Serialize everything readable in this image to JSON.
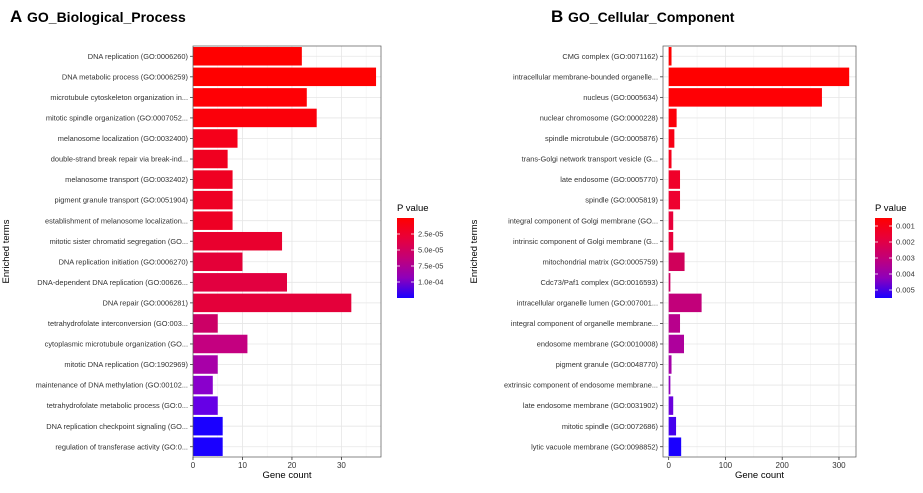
{
  "panels": [
    {
      "letter": "A",
      "title": "GO_Biological_Process",
      "chart_data": {
        "type": "bar",
        "orientation": "horizontal",
        "ylabel": "Enriched terms",
        "xlabel": "Gene count",
        "xlim": [
          0,
          38
        ],
        "xticks": [
          0,
          10,
          20,
          30
        ],
        "grid": true,
        "categories": [
          "DNA replication (GO:0006260)",
          "DNA metabolic process (GO:0006259)",
          "microtubule cytoskeleton organization in...",
          "mitotic spindle organization (GO:0007052...",
          "melanosome localization (GO:0032400)",
          "double-strand break repair via break-ind...",
          "melanosome transport (GO:0032402)",
          "pigment granule transport (GO:0051904)",
          "establishment of melanosome localization...",
          "mitotic sister chromatid segregation (GO...",
          "DNA replication initiation (GO:0006270)",
          "DNA-dependent DNA replication (GO:00626...",
          "DNA repair (GO:0006281)",
          "tetrahydrofolate interconversion (GO:003...",
          "cytoplasmic microtubule organization (GO...",
          "mitotic DNA replication (GO:1902969)",
          "maintenance of DNA methylation (GO:00102...",
          "tetrahydrofolate metabolic process (GO:0...",
          "DNA replication checkpoint signaling (GO...",
          "regulation of transferase activity (GO:0..."
        ],
        "values": [
          22,
          37,
          23,
          25,
          9,
          7,
          8,
          8,
          8,
          18,
          10,
          19,
          32,
          5,
          11,
          5,
          4,
          5,
          6,
          6
        ],
        "colors": [
          "#ff0000",
          "#ff0000",
          "#ff0005",
          "#fb000a",
          "#f5001a",
          "#f00020",
          "#ef0022",
          "#ee0024",
          "#ee0024",
          "#e9002e",
          "#e40038",
          "#e20040",
          "#e4003a",
          "#cc0066",
          "#c40080",
          "#a800a8",
          "#8a00cc",
          "#6600e6",
          "#1a00ff",
          "#1a00ff"
        ],
        "legend": {
          "title": "P value",
          "position": "right",
          "labels": [
            "2.5e-05",
            "5.0e-05",
            "7.5e-05",
            "1.0e-04"
          ],
          "gradient": [
            "#ff0000",
            "#e8003a",
            "#c20078",
            "#8e00bb",
            "#1a00ff"
          ]
        }
      }
    },
    {
      "letter": "B",
      "title": "GO_Cellular_Component",
      "chart_data": {
        "type": "bar",
        "orientation": "horizontal",
        "ylabel": "Enriched terms",
        "xlabel": "Gene count",
        "xlim": [
          -10,
          330
        ],
        "xticks": [
          0,
          100,
          200,
          300
        ],
        "grid": true,
        "categories": [
          "CMG complex (GO:0071162)",
          "intracellular membrane-bounded organelle...",
          "nucleus (GO:0005634)",
          "nuclear chromosome (GO:0000228)",
          "spindle microtubule (GO:0005876)",
          "trans-Golgi network transport vesicle (G...",
          "late endosome (GO:0005770)",
          "spindle (GO:0005819)",
          "integral component of Golgi membrane (GO...",
          "intrinsic component of Golgi membrane (G...",
          "mitochondrial matrix (GO:0005759)",
          "Cdc73/Paf1 complex (GO:0016593)",
          "intracellular organelle lumen (GO:007001...",
          "integral component of organelle membrane...",
          "endosome membrane (GO:0010008)",
          "pigment granule (GO:0048770)",
          "extrinsic component of endosome membrane...",
          "late endosome membrane (GO:0031902)",
          "mitotic spindle (GO:0072686)",
          "lytic vacuole membrane (GO:0098852)"
        ],
        "values": [
          5,
          318,
          270,
          14,
          10,
          5,
          20,
          20,
          8,
          8,
          28,
          3,
          58,
          20,
          27,
          5,
          3,
          8,
          13,
          22
        ],
        "colors": [
          "#ff0000",
          "#ff0000",
          "#ff0005",
          "#fc000a",
          "#f80015",
          "#f5001c",
          "#f0002a",
          "#ee0030",
          "#e8003a",
          "#e8003a",
          "#d0005a",
          "#cc0064",
          "#c2007a",
          "#b8008c",
          "#ae009c",
          "#a400a8",
          "#8e00bf",
          "#6a00dc",
          "#4400ee",
          "#1a00ff"
        ],
        "legend": {
          "title": "P value",
          "position": "right",
          "labels": [
            "0.001",
            "0.002",
            "0.003",
            "0.004",
            "0.005"
          ],
          "gradient": [
            "#ff0000",
            "#e8003a",
            "#c20078",
            "#8e00bb",
            "#1a00ff"
          ]
        }
      }
    }
  ]
}
